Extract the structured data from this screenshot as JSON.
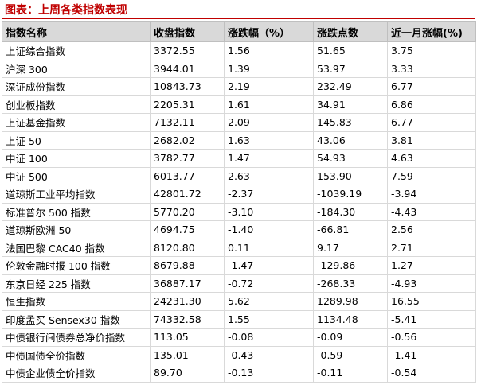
{
  "header": {
    "title": "图表：上周各类指数表现"
  },
  "table": {
    "columns": [
      "指数名称",
      "收盘指数",
      "涨跌幅（%）",
      "涨跌点数",
      "近一月涨幅(%)"
    ],
    "rows": [
      [
        "上证综合指数",
        "3372.55",
        "1.56",
        "51.65",
        "3.75"
      ],
      [
        "沪深 300",
        "3944.01",
        "1.39",
        "53.97",
        "3.33"
      ],
      [
        "深证成份指数",
        "10843.73",
        "2.19",
        "232.49",
        "6.77"
      ],
      [
        "创业板指数",
        "2205.31",
        "1.61",
        "34.91",
        "6.86"
      ],
      [
        "上证基金指数",
        "7132.11",
        "2.09",
        "145.83",
        "6.77"
      ],
      [
        "上证 50",
        "2682.02",
        "1.63",
        "43.06",
        "3.81"
      ],
      [
        "中证 100",
        "3782.77",
        "1.47",
        "54.93",
        "4.63"
      ],
      [
        "中证 500",
        "6013.77",
        "2.63",
        "153.90",
        "7.59"
      ],
      [
        "道琼斯工业平均指数",
        "42801.72",
        "-2.37",
        "-1039.19",
        "-3.94"
      ],
      [
        "标准普尔 500 指数",
        "5770.20",
        "-3.10",
        "-184.30",
        "-4.43"
      ],
      [
        "道琼斯欧洲 50",
        "4694.75",
        "-1.40",
        "-66.81",
        "2.56"
      ],
      [
        "法国巴黎 CAC40 指数",
        "8120.80",
        "0.11",
        "9.17",
        "2.71"
      ],
      [
        "伦敦金融时报 100 指数",
        "8679.88",
        "-1.47",
        "-129.86",
        "1.27"
      ],
      [
        "东京日经 225 指数",
        "36887.17",
        "-0.72",
        "-268.33",
        "-4.93"
      ],
      [
        "恒生指数",
        "24231.30",
        "5.62",
        "1289.98",
        "16.55"
      ],
      [
        "印度孟买 Sensex30 指数",
        "74332.58",
        "1.55",
        "1134.48",
        "-5.41"
      ],
      [
        "中债银行间债券总净价指数",
        "113.05",
        "-0.08",
        "-0.09",
        "-0.56"
      ],
      [
        "中债国债全价指数",
        "135.01",
        "-0.43",
        "-0.59",
        "-1.41"
      ],
      [
        "中债企业债全价指数",
        "89.70",
        "-0.13",
        "-0.11",
        "-0.54"
      ]
    ]
  }
}
